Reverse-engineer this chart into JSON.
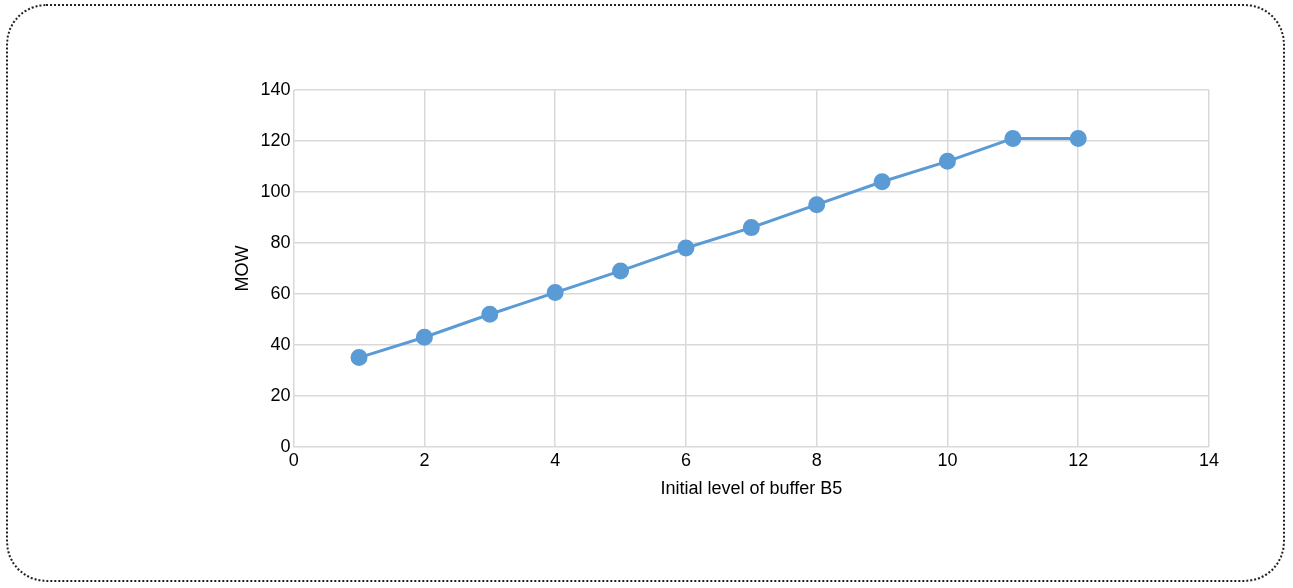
{
  "chart_data": {
    "type": "line",
    "xlabel": "Initial level of buffer B5",
    "ylabel": "MOW",
    "x": [
      1,
      2,
      3,
      4,
      5,
      6,
      7,
      8,
      9,
      10,
      11,
      12
    ],
    "series": [
      {
        "color": "#5b9bd5",
        "values": [
          35,
          43,
          52,
          60.5,
          69,
          78,
          86,
          95,
          104,
          112,
          121,
          121
        ]
      }
    ],
    "xlim": [
      0,
      14
    ],
    "xticks": [
      0,
      2,
      4,
      6,
      8,
      10,
      12,
      14
    ],
    "ylim": [
      0,
      140
    ],
    "yticks": [
      0,
      20,
      40,
      60,
      80,
      100,
      120,
      140
    ],
    "grid": true,
    "legend": false,
    "marker": "circle",
    "line_style": "solid"
  }
}
